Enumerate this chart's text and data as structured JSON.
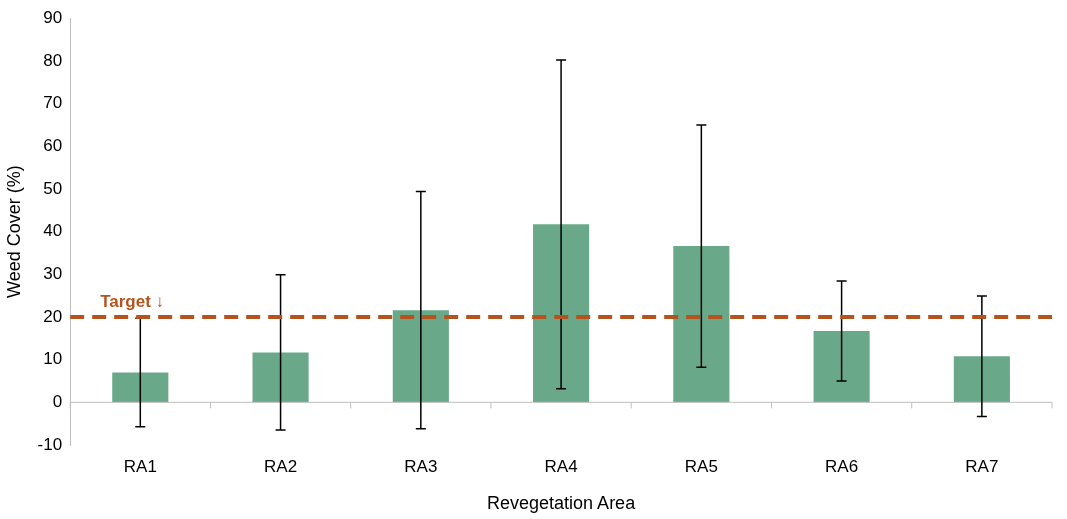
{
  "chart_data": {
    "type": "bar",
    "xlabel": "Revegetation Area",
    "ylabel": "Weed Cover (%)",
    "categories": [
      "RA1",
      "RA2",
      "RA3",
      "RA4",
      "RA5",
      "RA6",
      "RA7"
    ],
    "values": [
      7,
      11.7,
      21.6,
      41.7,
      36.6,
      16.7,
      10.8
    ],
    "errors": [
      12.7,
      18.2,
      27.8,
      38.5,
      28.4,
      11.7,
      14.1
    ],
    "color": "#6aa88a",
    "ylim": [
      -10,
      90
    ],
    "yticks": [
      -10,
      0,
      10,
      20,
      30,
      40,
      50,
      60,
      70,
      80,
      90
    ],
    "ref_lines": [
      {
        "axis": "y",
        "value": 20,
        "label": "Target ↓",
        "color": "#b5531f",
        "line_style": "dashed"
      }
    ],
    "grid": false,
    "legend": false
  }
}
